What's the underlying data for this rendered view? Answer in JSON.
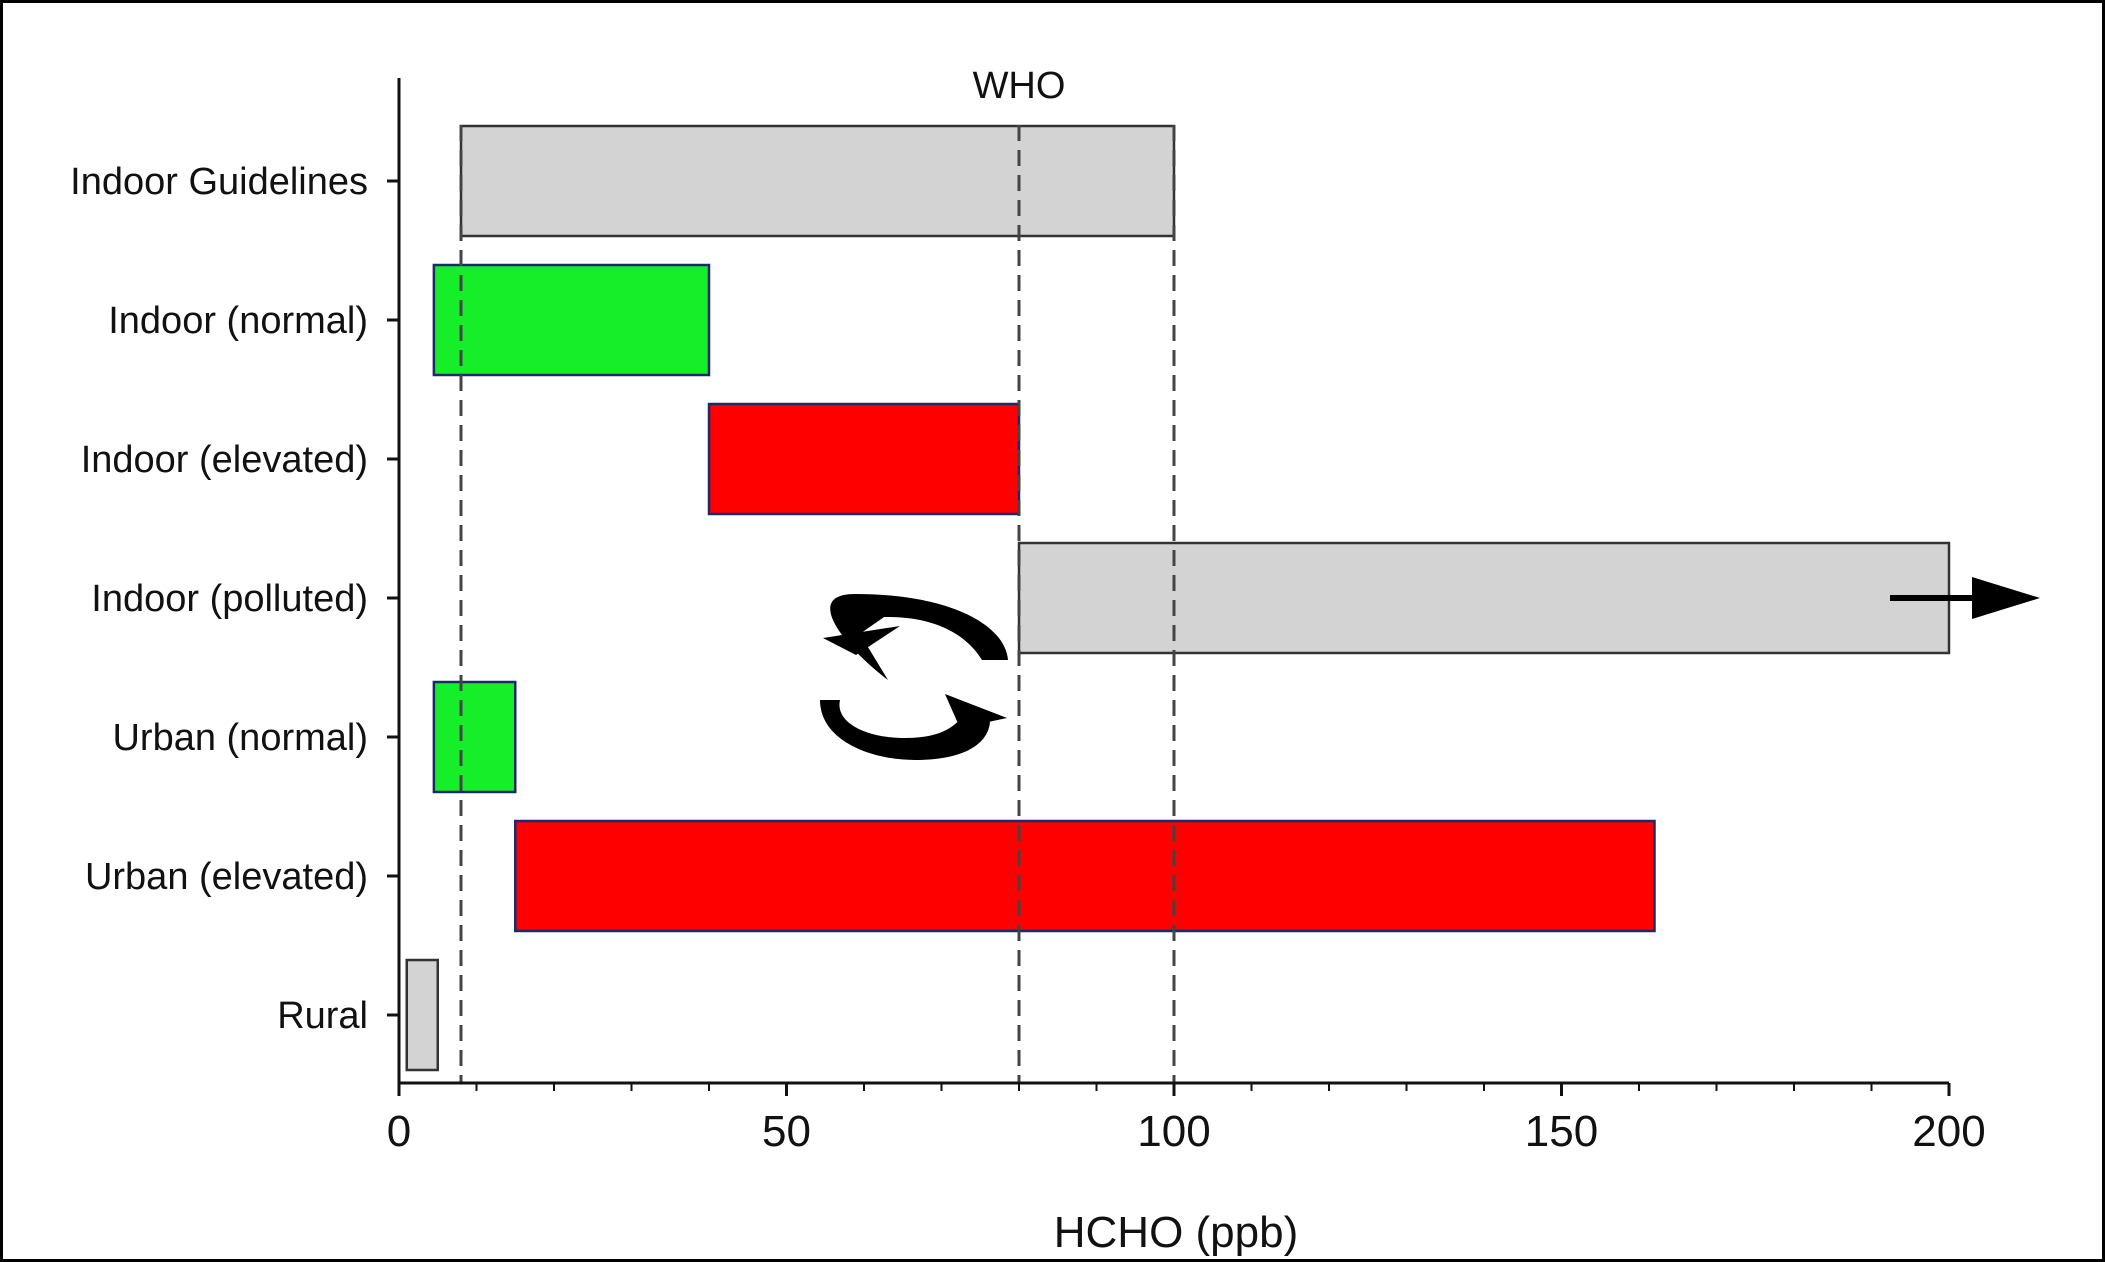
{
  "chart_data": {
    "type": "bar",
    "orientation": "horizontal-range",
    "title": "",
    "xlabel": "HCHO (ppb)",
    "ylabel": "",
    "xlim": [
      0,
      200
    ],
    "x_ticks": [
      0,
      50,
      100,
      150,
      200
    ],
    "grid": false,
    "categories": [
      "Indoor Guidelines",
      "Indoor (normal)",
      "Indoor (elevated)",
      "Indoor (polluted)",
      "Urban (normal)",
      "Urban (elevated)",
      "Rural"
    ],
    "ranges": [
      {
        "category": "Indoor Guidelines",
        "start": 8,
        "end": 100,
        "color": "#d3d3d3"
      },
      {
        "category": "Indoor (normal)",
        "start": 4.5,
        "end": 40,
        "color": "#16ee2a"
      },
      {
        "category": "Indoor (elevated)",
        "start": 40,
        "end": 80,
        "color": "#ff0000"
      },
      {
        "category": "Indoor (polluted)",
        "start": 80,
        "end": 200,
        "color": "#d3d3d3",
        "open_ended": true
      },
      {
        "category": "Urban (normal)",
        "start": 4.5,
        "end": 15,
        "color": "#16ee2a"
      },
      {
        "category": "Urban (elevated)",
        "start": 15,
        "end": 162,
        "color": "#ff0000"
      },
      {
        "category": "Rural",
        "start": 1,
        "end": 5,
        "color": "#d3d3d3"
      }
    ],
    "reference_lines": [
      {
        "x": 8
      },
      {
        "x": 80
      },
      {
        "x": 100
      }
    ],
    "annotations": [
      {
        "text": "WHO",
        "x": 80
      },
      {
        "icon": "refresh-cycle-icon"
      },
      {
        "icon": "right-arrow-icon"
      }
    ]
  }
}
